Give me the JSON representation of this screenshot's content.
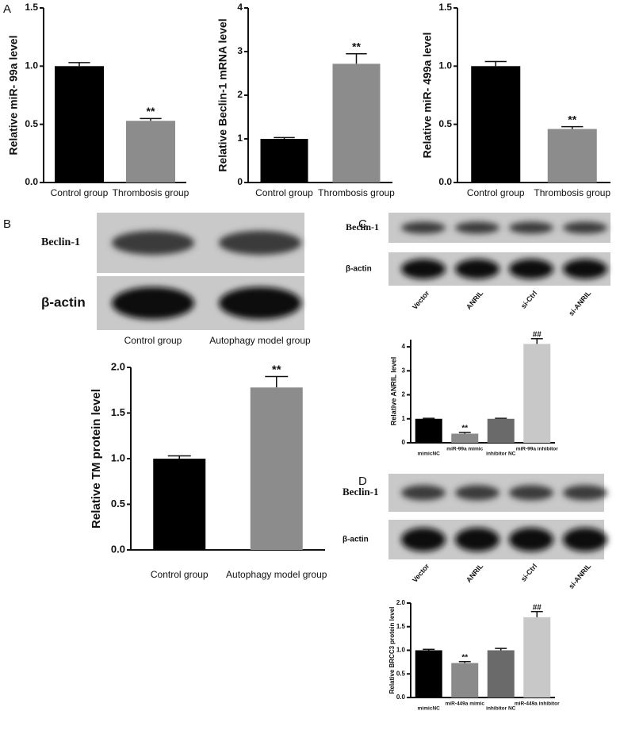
{
  "panels": [
    "A",
    "B",
    "C",
    "D"
  ],
  "blots": [
    {
      "rows": [
        "Beclin-1",
        "β-actin"
      ],
      "lanes": [
        "Control group",
        "Autophagy model group"
      ]
    },
    {
      "rows": [
        "Beclin-1",
        "β-actin"
      ],
      "lanes": [
        "Vector",
        "ANRIL",
        "si-Ctrl",
        "si-ANRIL"
      ]
    },
    {
      "rows": [
        "Beclin-1",
        "β-actin"
      ],
      "lanes": [
        "Vector",
        "ANRIL",
        "si-Ctrl",
        "si-ANRIL"
      ]
    }
  ],
  "chart_data": [
    {
      "type": "bar",
      "y_label": "Relative miR- 99a level",
      "categories": [
        "Control group",
        "Thrombosis group"
      ],
      "values": [
        1.0,
        0.53
      ],
      "errors": [
        0.03,
        0.02
      ],
      "colors": [
        "#000000",
        "#8c8c8c"
      ],
      "annotations": [
        null,
        "**"
      ],
      "ylim": [
        0,
        1.5
      ],
      "yticks": [
        {
          "value": 0,
          "label": "0.0"
        },
        {
          "value": 0.5,
          "label": "0.5"
        },
        {
          "value": 1,
          "label": "1.0"
        },
        {
          "value": 1.5,
          "label": "1.5"
        }
      ]
    },
    {
      "type": "bar",
      "y_label": "Relative Beclin-1 mRNA level",
      "categories": [
        "Control group",
        "Thrombosis group"
      ],
      "values": [
        1.0,
        2.72
      ],
      "errors": [
        0.03,
        0.23
      ],
      "colors": [
        "#000000",
        "#8c8c8c"
      ],
      "annotations": [
        null,
        "**"
      ],
      "ylim": [
        0,
        4
      ],
      "yticks": [
        0,
        1,
        2,
        3,
        4
      ]
    },
    {
      "type": "bar",
      "y_label": "Relative miR- 499a level",
      "categories": [
        "Control group",
        "Thrombosis group"
      ],
      "values": [
        1.0,
        0.46
      ],
      "errors": [
        0.04,
        0.02
      ],
      "colors": [
        "#000000",
        "#8c8c8c"
      ],
      "annotations": [
        null,
        "**"
      ],
      "ylim": [
        0,
        1.5
      ],
      "yticks": [
        {
          "value": 0,
          "label": "0.0"
        },
        {
          "value": 0.5,
          "label": "0.5"
        },
        {
          "value": 1,
          "label": "1.0"
        },
        {
          "value": 1.5,
          "label": "1.5"
        }
      ]
    },
    {
      "type": "bar",
      "y_label": "Relative  TM protein level",
      "categories": [
        "Control group",
        "Autophagy model group"
      ],
      "values": [
        1.0,
        1.78
      ],
      "errors": [
        0.03,
        0.12
      ],
      "colors": [
        "#000000",
        "#8c8c8c"
      ],
      "annotations": [
        null,
        "**"
      ],
      "ylim": [
        0,
        2
      ],
      "yticks": [
        {
          "value": 0,
          "label": "0.0"
        },
        {
          "value": 0.5,
          "label": "0.5"
        },
        {
          "value": 1,
          "label": "1.0"
        },
        {
          "value": 1.5,
          "label": "1.5"
        },
        {
          "value": 2,
          "label": "2.0"
        }
      ]
    },
    {
      "type": "bar",
      "y_label": "Relative ANRIL level",
      "categories": [
        "mimicNC",
        "miR-99a mimic",
        "inhibitor NC",
        "miR-99a inhibitor"
      ],
      "values": [
        1.0,
        0.38,
        1.0,
        4.12
      ],
      "errors": [
        0.02,
        0.05,
        0.02,
        0.22
      ],
      "colors": [
        "#000000",
        "#8a8a8a",
        "#6a6a6a",
        "#c8c8c8"
      ],
      "annotations": [
        null,
        "**",
        null,
        "##"
      ],
      "ylim": [
        0,
        4.3
      ],
      "yticks": [
        0,
        1,
        2,
        3,
        4
      ]
    },
    {
      "type": "bar",
      "y_label": "Relative BRCC3 protein level",
      "categories": [
        "mimicNC",
        "miR-449a mimic",
        "inhibitor NC",
        "miR-449a inhibitor"
      ],
      "values": [
        1.0,
        0.73,
        1.0,
        1.7
      ],
      "errors": [
        0.02,
        0.03,
        0.04,
        0.12
      ],
      "colors": [
        "#000000",
        "#8a8a8a",
        "#6a6a6a",
        "#c8c8c8"
      ],
      "annotations": [
        null,
        "**",
        null,
        "##"
      ],
      "ylim": [
        0,
        2
      ],
      "yticks": [
        {
          "value": 0,
          "label": "0.0"
        },
        {
          "value": 0.5,
          "label": "0.5"
        },
        {
          "value": 1,
          "label": "1.0"
        },
        {
          "value": 1.5,
          "label": "1.5"
        },
        {
          "value": 2,
          "label": "2.0"
        }
      ]
    }
  ]
}
